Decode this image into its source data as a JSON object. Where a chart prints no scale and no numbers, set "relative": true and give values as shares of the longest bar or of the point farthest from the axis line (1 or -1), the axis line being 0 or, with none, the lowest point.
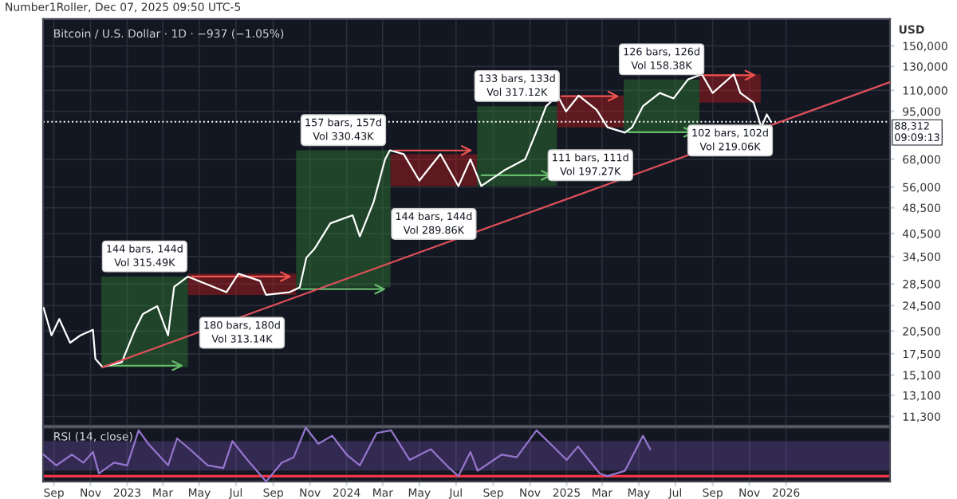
{
  "chart_data": [
    {
      "type": "line",
      "title": "Bitcoin / U.S. Dollar · 1D · −937 (−1.05%)",
      "ylabel": "USD",
      "annotations": [
        "Number1Roller, Dec 07, 2025 09:50 UTC-5"
      ],
      "series": [
        {
          "color": "#ffffff",
          "x": [
            "2022-08-15",
            "2022-08-28",
            "2022-09-10",
            "2022-09-28",
            "2022-10-15",
            "2022-11-05",
            "2022-11-09",
            "2022-11-21",
            "2022-12-23",
            "2023-01-14",
            "2023-01-27",
            "2023-02-20",
            "2023-03-10",
            "2023-03-20",
            "2023-04-12",
            "2023-05-10",
            "2023-06-15",
            "2023-07-05",
            "2023-08-10",
            "2023-08-20",
            "2023-09-28",
            "2023-10-15",
            "2023-10-26",
            "2023-11-09",
            "2023-12-05",
            "2024-01-11",
            "2024-01-23",
            "2024-02-15",
            "2024-03-05",
            "2024-03-13",
            "2024-04-05",
            "2024-05-01",
            "2024-06-05",
            "2024-07-05",
            "2024-07-25",
            "2024-08-05",
            "2024-08-12",
            "2024-09-19",
            "2024-10-24",
            "2024-11-11",
            "2024-11-28",
            "2024-12-17",
            "2024-12-31",
            "2025-01-21",
            "2025-02-20",
            "2025-03-10",
            "2025-04-08",
            "2025-04-20",
            "2025-05-08",
            "2025-06-05",
            "2025-06-28",
            "2025-07-22",
            "2025-08-14",
            "2025-09-01",
            "2025-10-06",
            "2025-10-17",
            "2025-11-08",
            "2025-11-21",
            "2025-11-30",
            "2025-12-07"
          ],
          "values": [
            24100,
            19900,
            22300,
            18900,
            19900,
            20700,
            16900,
            15950,
            16500,
            20700,
            23100,
            24400,
            19900,
            27900,
            30000,
            28600,
            26900,
            30600,
            29100,
            26400,
            26900,
            27800,
            34200,
            36500,
            43500,
            46000,
            39700,
            50500,
            68000,
            72400,
            70500,
            58600,
            70500,
            56400,
            68000,
            60800,
            56400,
            62900,
            68000,
            81900,
            98500,
            106000,
            95000,
            106000,
            96000,
            85000,
            81900,
            85000,
            98500,
            108000,
            104000,
            118700,
            123000,
            108000,
            123000,
            108000,
            101000,
            85000,
            93000,
            88300
          ]
        },
        {
          "type": "line",
          "color": "#e0505a",
          "x": [
            "2022-11-21",
            "2026-06-23"
          ],
          "values": [
            15950,
            116500
          ]
        }
      ],
      "xlim": [
        "2022-08-14",
        "2026-06-23"
      ],
      "ylim": [
        10600,
        181000
      ],
      "log": true,
      "xticks": [
        "2022-09-01",
        "2022-11-01",
        "2023-01-01",
        "2023-03-01",
        "2023-05-01",
        "2023-07-01",
        "2023-09-01",
        "2023-11-01",
        "2024-01-01",
        "2024-03-01",
        "2024-05-01",
        "2024-07-01",
        "2024-09-01",
        "2024-11-01",
        "2025-01-01",
        "2025-03-01",
        "2025-05-01",
        "2025-07-01",
        "2025-09-01",
        "2025-11-01",
        "2026-01-01"
      ],
      "yticks": [
        {
          "value": 11300,
          "label": "11,300"
        },
        {
          "value": 13100,
          "label": "13,100"
        },
        {
          "value": 15100,
          "label": "15,100"
        },
        {
          "value": 17500,
          "label": "17,500"
        },
        {
          "value": 20500,
          "label": "20,500"
        },
        {
          "value": 24500,
          "label": "24,500"
        },
        {
          "value": 28500,
          "label": "28,500"
        },
        {
          "value": 34500,
          "label": "34,500"
        },
        {
          "value": 40500,
          "label": "40,500"
        },
        {
          "value": 48500,
          "label": "48,500"
        },
        {
          "value": 56000,
          "label": "56,000"
        },
        {
          "value": 68000,
          "label": "68,000"
        },
        {
          "value": 95000,
          "label": "95,000"
        },
        {
          "value": 110000,
          "label": "110,000"
        },
        {
          "value": 130000,
          "label": "130,000"
        },
        {
          "value": 150000,
          "label": "150,000"
        }
      ],
      "ref_lines": [
        {
          "axis": "y",
          "value": 88312,
          "label": "88,312\n09:09:13",
          "color": "#ffffff",
          "line_style": "dotted"
        }
      ],
      "bands": [
        {
          "axis": "x",
          "from": "2022-11-19",
          "to": "2023-04-12",
          "label": "144 bars, 144d\nVol 315.49K",
          "color": "#2e7d32"
        },
        {
          "axis": "x",
          "from": "2023-04-12",
          "to": "2023-10-09",
          "label": "180 bars, 180d\nVol 313.14K",
          "color": "#b71c1c"
        },
        {
          "axis": "x",
          "from": "2023-10-09",
          "to": "2024-03-14",
          "label": "157 bars, 157d\nVol 330.43K",
          "color": "#2e7d32"
        },
        {
          "axis": "x",
          "from": "2024-03-14",
          "to": "2024-08-05",
          "label": "144 bars, 144d\nVol 289.86K",
          "color": "#b71c1c"
        },
        {
          "axis": "x",
          "from": "2024-08-05",
          "to": "2024-12-16",
          "label": "133 bars, 133d\nVol 317.12K",
          "color": "#2e7d32"
        },
        {
          "axis": "x",
          "from": "2024-12-16",
          "to": "2025-04-06",
          "label": "111 bars, 111d\nVol 197.27K",
          "color": "#b71c1c"
        },
        {
          "axis": "x",
          "from": "2025-04-06",
          "to": "2025-08-10",
          "label": "126 bars, 126d\nVol 158.38K",
          "color": "#2e7d32"
        },
        {
          "axis": "x",
          "from": "2025-08-10",
          "to": "2025-11-20",
          "label": "102 bars, 102d\nVol 219.06K",
          "color": "#b71c1c"
        }
      ],
      "grid": true,
      "tick_labels": "y"
    },
    {
      "type": "line",
      "title": "RSI (14, close)",
      "relative": true,
      "series": [
        {
          "color": "#9575cd",
          "x": [
            "2022-08-15",
            "2022-09-05",
            "2022-10-01",
            "2022-10-20",
            "2022-11-05",
            "2022-11-15",
            "2022-12-10",
            "2023-01-01",
            "2023-01-20",
            "2023-02-05",
            "2023-03-10",
            "2023-03-25",
            "2023-04-15",
            "2023-05-15",
            "2023-06-10",
            "2023-06-25",
            "2023-07-20",
            "2023-08-20",
            "2023-09-15",
            "2023-10-05",
            "2023-10-25",
            "2023-11-15",
            "2023-12-08",
            "2024-01-01",
            "2024-01-23",
            "2024-02-20",
            "2024-03-15",
            "2024-04-15",
            "2024-05-20",
            "2024-06-20",
            "2024-07-05",
            "2024-07-25",
            "2024-08-06",
            "2024-09-15",
            "2024-10-10",
            "2024-11-12",
            "2024-12-05",
            "2025-01-01",
            "2025-01-20",
            "2025-02-25",
            "2025-03-10",
            "2025-04-08",
            "2025-05-08",
            "2025-05-20"
          ],
          "values": [
            0.5,
            0.3,
            0.5,
            0.35,
            0.55,
            0.15,
            0.35,
            0.3,
            0.95,
            0.7,
            0.3,
            0.8,
            0.6,
            0.3,
            0.25,
            0.75,
            0.4,
            0,
            0.35,
            0.45,
            1,
            0.7,
            0.85,
            0.5,
            0.3,
            0.9,
            0.95,
            0.4,
            0.6,
            0.25,
            0.1,
            0.55,
            0.2,
            0.5,
            0.45,
            0.95,
            0.7,
            0.4,
            0.65,
            0.15,
            0.1,
            0.2,
            0.85,
            0.6
          ]
        }
      ],
      "xlim": [
        "2022-08-14",
        "2026-06-23"
      ],
      "xticks": [
        {
          "value": "2022-09-01",
          "label": "Sep"
        },
        {
          "value": "2022-11-01",
          "label": "Nov"
        },
        {
          "value": "2023-01-01",
          "label": "2023"
        },
        {
          "value": "2023-03-01",
          "label": "Mar"
        },
        {
          "value": "2023-05-01",
          "label": "May"
        },
        {
          "value": "2023-07-01",
          "label": "Jul"
        },
        {
          "value": "2023-09-01",
          "label": "Sep"
        },
        {
          "value": "2023-11-01",
          "label": "Nov"
        },
        {
          "value": "2024-01-01",
          "label": "2024"
        },
        {
          "value": "2024-03-01",
          "label": "Mar"
        },
        {
          "value": "2024-05-01",
          "label": "May"
        },
        {
          "value": "2024-07-01",
          "label": "Jul"
        },
        {
          "value": "2024-09-01",
          "label": "Sep"
        },
        {
          "value": "2024-11-01",
          "label": "Nov"
        },
        {
          "value": "2025-01-01",
          "label": "2025"
        },
        {
          "value": "2025-03-01",
          "label": "Mar"
        },
        {
          "value": "2025-05-01",
          "label": "May"
        },
        {
          "value": "2025-07-01",
          "label": "Jul"
        },
        {
          "value": "2025-09-01",
          "label": "Sep"
        },
        {
          "value": "2025-11-01",
          "label": "Nov"
        },
        {
          "value": "2026-01-01",
          "label": "2026"
        }
      ],
      "ref_lines": [
        {
          "axis": "y",
          "value": 0.1,
          "color": "#f23645",
          "line_style": "solid"
        }
      ],
      "bands": [
        {
          "axis": "y",
          "from": 0.2,
          "to": 0.75,
          "color": "#7e57c2"
        }
      ],
      "grid": "x",
      "tick_labels": "x"
    }
  ]
}
